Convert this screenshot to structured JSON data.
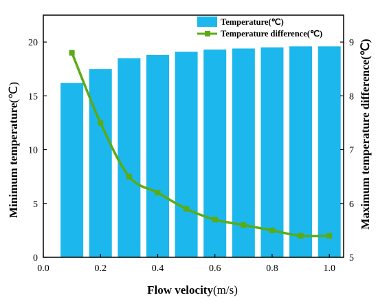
{
  "chart_data": {
    "type": "bar+line",
    "x": [
      0.1,
      0.2,
      0.3,
      0.4,
      0.5,
      0.6,
      0.7,
      0.8,
      0.9,
      1.0
    ],
    "series": [
      {
        "name": "Temperature(℃)",
        "kind": "bar",
        "axis": "left",
        "color": "#1CB7EC",
        "values": [
          16.2,
          17.5,
          18.5,
          18.8,
          19.1,
          19.3,
          19.4,
          19.5,
          19.6,
          19.6
        ]
      },
      {
        "name": "Temperature difference(℃)",
        "kind": "line",
        "axis": "right",
        "color": "#5AAB14",
        "values": [
          8.8,
          7.5,
          6.5,
          6.2,
          5.9,
          5.7,
          5.6,
          5.5,
          5.4,
          5.4
        ]
      }
    ],
    "xlabel": {
      "main": "Flow velocity",
      "unit": "(m/s)"
    },
    "ylabel_left": {
      "main": "Minimum temperature",
      "unit": "(℃)"
    },
    "ylabel_right": "Maximum temperature difference(℃)",
    "xlim": [
      0.0,
      1.05
    ],
    "ylim_left": [
      0,
      22.5
    ],
    "ylim_right": [
      5,
      9.5
    ],
    "xticks": [
      0.0,
      0.2,
      0.4,
      0.6,
      0.8,
      1.0
    ],
    "xtick_labels": [
      "0.0",
      "0.2",
      "0.4",
      "0.6",
      "0.8",
      "1.0"
    ],
    "yticks_left": [
      0,
      5,
      10,
      15,
      20
    ],
    "ytick_labels_left": [
      "0",
      "5",
      "10",
      "15",
      "20"
    ],
    "yticks_right": [
      5,
      6,
      7,
      8,
      9
    ],
    "ytick_labels_right": [
      "5",
      "6",
      "7",
      "8",
      "9"
    ],
    "grid": false,
    "legend_position": "top-right"
  }
}
